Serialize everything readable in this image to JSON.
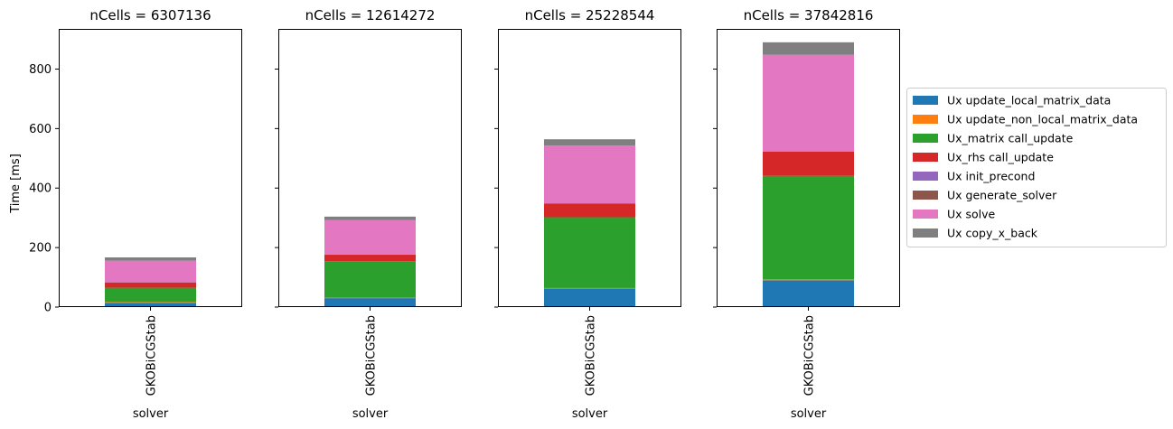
{
  "chart_data": {
    "type": "bar",
    "stacked": true,
    "ylabel": "Time [ms]",
    "xlabel": "solver",
    "ylim": [
      0,
      935
    ],
    "yticks": [
      0,
      200,
      400,
      600,
      800
    ],
    "shared_y": true,
    "legend_placement": "right",
    "series": [
      {
        "name": "Ux update_local_matrix_data",
        "color": "#1f77b4"
      },
      {
        "name": "Ux update_non_local_matrix_data",
        "color": "#ff7f0e"
      },
      {
        "name": "Ux_matrix call_update",
        "color": "#2ca02c"
      },
      {
        "name": "Ux_rhs call_update",
        "color": "#d62728"
      },
      {
        "name": "Ux init_precond",
        "color": "#9467bd"
      },
      {
        "name": "Ux generate_solver",
        "color": "#8c564b"
      },
      {
        "name": "Ux solve",
        "color": "#e377c2"
      },
      {
        "name": "Ux copy_x_back",
        "color": "#7f7f7f"
      }
    ],
    "panels": [
      {
        "title": "nCells = 6307136",
        "category": "GKOBiCGStab",
        "values": [
          14,
          3,
          48,
          18,
          0.5,
          0.5,
          72,
          11
        ]
      },
      {
        "title": "nCells = 12614272",
        "category": "GKOBiCGStab",
        "values": [
          30,
          2,
          122,
          22,
          0.5,
          0.5,
          115,
          12
        ]
      },
      {
        "title": "nCells = 25228544",
        "category": "GKOBiCGStab",
        "values": [
          62,
          2,
          238,
          46,
          0.5,
          0.5,
          194,
          21
        ]
      },
      {
        "title": "nCells = 37842816",
        "category": "GKOBiCGStab",
        "values": [
          90,
          3,
          348,
          82,
          0.5,
          0.5,
          324,
          42
        ]
      }
    ]
  }
}
